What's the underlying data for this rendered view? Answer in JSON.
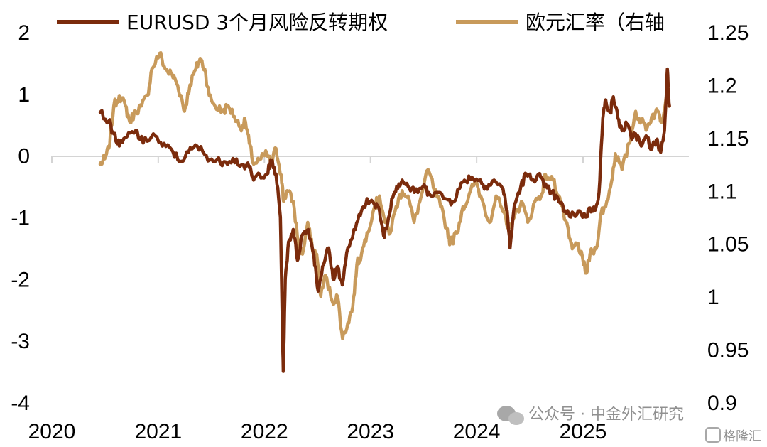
{
  "chart_data": {
    "type": "line",
    "title": "",
    "legend": {
      "placement": "top",
      "items": [
        "EURUSD 3个月风险反转期权",
        "欧元汇率（右轴"
      ]
    },
    "x_ticks": [
      "2020",
      "2021",
      "2022",
      "2023",
      "2024",
      "2025"
    ],
    "xlim": [
      "2020-01-01",
      "2025-12-31"
    ],
    "y_left": {
      "ylim": [
        -4,
        2
      ],
      "ticks": [
        "2",
        "1",
        "0",
        "-1",
        "-2",
        "-3",
        "-4"
      ]
    },
    "y_right": {
      "ylim": [
        0.9,
        1.25
      ],
      "ticks": [
        "1.25",
        "1.2",
        "1.15",
        "1.1",
        "1.05",
        "1",
        "0.95",
        "0.9"
      ]
    },
    "grid": false,
    "series": [
      {
        "name": "EURUSD 3个月风险反转期权",
        "axis": "left",
        "color": "#7b2b0c",
        "points": [
          [
            "2020-06-15",
            0.7
          ],
          [
            "2020-07-15",
            0.55
          ],
          [
            "2020-08-01",
            0.35
          ],
          [
            "2020-08-20",
            0.15
          ],
          [
            "2020-09-15",
            0.3
          ],
          [
            "2020-10-15",
            0.4
          ],
          [
            "2020-11-10",
            0.2
          ],
          [
            "2020-12-15",
            0.35
          ],
          [
            "2021-01-15",
            0.15
          ],
          [
            "2021-02-15",
            0.1
          ],
          [
            "2021-03-15",
            -0.1
          ],
          [
            "2021-04-15",
            0.05
          ],
          [
            "2021-05-15",
            0.15
          ],
          [
            "2021-06-15",
            0.0
          ],
          [
            "2021-07-15",
            -0.1
          ],
          [
            "2021-08-15",
            -0.1
          ],
          [
            "2021-09-15",
            -0.05
          ],
          [
            "2021-10-15",
            -0.15
          ],
          [
            "2021-11-10",
            -0.2
          ],
          [
            "2021-11-25",
            -0.4
          ],
          [
            "2021-12-15",
            -0.3
          ],
          [
            "2022-01-10",
            -0.3
          ],
          [
            "2022-01-25",
            -0.1
          ],
          [
            "2022-02-10",
            -0.3
          ],
          [
            "2022-02-25",
            -1.0
          ],
          [
            "2022-03-03",
            -2.5
          ],
          [
            "2022-03-07",
            -3.5
          ],
          [
            "2022-03-14",
            -2.0
          ],
          [
            "2022-03-25",
            -1.4
          ],
          [
            "2022-04-10",
            -1.2
          ],
          [
            "2022-04-25",
            -1.7
          ],
          [
            "2022-05-10",
            -1.3
          ],
          [
            "2022-06-01",
            -1.2
          ],
          [
            "2022-06-20",
            -1.6
          ],
          [
            "2022-07-05",
            -2.2
          ],
          [
            "2022-07-20",
            -1.8
          ],
          [
            "2022-08-10",
            -1.5
          ],
          [
            "2022-08-25",
            -2.0
          ],
          [
            "2022-09-10",
            -1.8
          ],
          [
            "2022-09-26",
            -2.1
          ],
          [
            "2022-10-15",
            -1.5
          ],
          [
            "2022-11-10",
            -1.2
          ],
          [
            "2022-12-01",
            -0.9
          ],
          [
            "2022-12-20",
            -0.7
          ],
          [
            "2023-01-15",
            -0.8
          ],
          [
            "2023-02-01",
            -0.9
          ],
          [
            "2023-02-15",
            -1.3
          ],
          [
            "2023-03-01",
            -1.1
          ],
          [
            "2023-03-15",
            -0.7
          ],
          [
            "2023-04-01",
            -0.5
          ],
          [
            "2023-04-20",
            -0.4
          ],
          [
            "2023-05-10",
            -0.5
          ],
          [
            "2023-06-01",
            -0.6
          ],
          [
            "2023-07-01",
            -0.5
          ],
          [
            "2023-07-20",
            -0.6
          ],
          [
            "2023-08-15",
            -0.6
          ],
          [
            "2023-09-15",
            -0.7
          ],
          [
            "2023-10-10",
            -0.75
          ],
          [
            "2023-11-01",
            -0.55
          ],
          [
            "2023-11-20",
            -0.4
          ],
          [
            "2023-12-15",
            -0.35
          ],
          [
            "2024-01-10",
            -0.4
          ],
          [
            "2024-02-01",
            -0.5
          ],
          [
            "2024-03-01",
            -0.4
          ],
          [
            "2024-04-01",
            -0.55
          ],
          [
            "2024-04-15",
            -0.9
          ],
          [
            "2024-04-25",
            -1.5
          ],
          [
            "2024-05-10",
            -0.8
          ],
          [
            "2024-06-01",
            -0.5
          ],
          [
            "2024-06-20",
            -0.3
          ],
          [
            "2024-07-10",
            -0.4
          ],
          [
            "2024-08-01",
            -0.3
          ],
          [
            "2024-08-20",
            -0.5
          ],
          [
            "2024-09-15",
            -0.6
          ],
          [
            "2024-10-10",
            -0.75
          ],
          [
            "2024-11-01",
            -0.9
          ],
          [
            "2024-11-20",
            -1.0
          ],
          [
            "2024-12-15",
            -0.9
          ],
          [
            "2025-01-10",
            -1.0
          ],
          [
            "2025-01-25",
            -0.85
          ],
          [
            "2025-02-10",
            -0.9
          ],
          [
            "2025-02-25",
            -0.6
          ],
          [
            "2025-03-10",
            0.6
          ],
          [
            "2025-03-20",
            0.9
          ],
          [
            "2025-04-05",
            0.7
          ],
          [
            "2025-04-15",
            0.95
          ],
          [
            "2025-05-01",
            0.6
          ],
          [
            "2025-05-15",
            0.4
          ],
          [
            "2025-06-01",
            0.5
          ],
          [
            "2025-06-15",
            0.3
          ],
          [
            "2025-07-01",
            0.35
          ],
          [
            "2025-07-20",
            0.15
          ],
          [
            "2025-08-10",
            0.3
          ],
          [
            "2025-08-25",
            0.1
          ],
          [
            "2025-09-10",
            0.25
          ],
          [
            "2025-09-25",
            0.05
          ],
          [
            "2025-10-08",
            0.4
          ],
          [
            "2025-10-18",
            1.4
          ],
          [
            "2025-10-25",
            0.8
          ]
        ]
      },
      {
        "name": "欧元汇率（右轴",
        "axis": "right",
        "color": "#c89a5b",
        "points": [
          [
            "2020-06-15",
            1.125
          ],
          [
            "2020-07-01",
            1.13
          ],
          [
            "2020-07-15",
            1.14
          ],
          [
            "2020-08-01",
            1.18
          ],
          [
            "2020-08-20",
            1.19
          ],
          [
            "2020-09-10",
            1.18
          ],
          [
            "2020-09-25",
            1.165
          ],
          [
            "2020-10-15",
            1.175
          ],
          [
            "2020-11-05",
            1.18
          ],
          [
            "2020-11-25",
            1.19
          ],
          [
            "2020-12-10",
            1.215
          ],
          [
            "2021-01-06",
            1.23
          ],
          [
            "2021-01-25",
            1.215
          ],
          [
            "2021-02-15",
            1.21
          ],
          [
            "2021-03-01",
            1.205
          ],
          [
            "2021-03-20",
            1.19
          ],
          [
            "2021-04-01",
            1.175
          ],
          [
            "2021-04-20",
            1.2
          ],
          [
            "2021-05-10",
            1.215
          ],
          [
            "2021-05-25",
            1.225
          ],
          [
            "2021-06-10",
            1.215
          ],
          [
            "2021-06-25",
            1.19
          ],
          [
            "2021-07-15",
            1.18
          ],
          [
            "2021-08-10",
            1.175
          ],
          [
            "2021-08-30",
            1.18
          ],
          [
            "2021-09-20",
            1.17
          ],
          [
            "2021-10-10",
            1.16
          ],
          [
            "2021-10-28",
            1.165
          ],
          [
            "2021-11-10",
            1.145
          ],
          [
            "2021-11-25",
            1.125
          ],
          [
            "2021-12-20",
            1.13
          ],
          [
            "2022-01-10",
            1.135
          ],
          [
            "2022-01-25",
            1.125
          ],
          [
            "2022-02-10",
            1.14
          ],
          [
            "2022-02-28",
            1.115
          ],
          [
            "2022-03-08",
            1.09
          ],
          [
            "2022-03-20",
            1.1
          ],
          [
            "2022-04-10",
            1.09
          ],
          [
            "2022-04-28",
            1.05
          ],
          [
            "2022-05-12",
            1.04
          ],
          [
            "2022-05-30",
            1.07
          ],
          [
            "2022-06-15",
            1.045
          ],
          [
            "2022-06-30",
            1.04
          ],
          [
            "2022-07-14",
            1.0
          ],
          [
            "2022-07-30",
            1.02
          ],
          [
            "2022-08-23",
            0.995
          ],
          [
            "2022-09-10",
            1.0
          ],
          [
            "2022-09-27",
            0.96
          ],
          [
            "2022-10-15",
            0.975
          ],
          [
            "2022-11-01",
            0.99
          ],
          [
            "2022-11-15",
            1.03
          ],
          [
            "2022-12-01",
            1.04
          ],
          [
            "2022-12-20",
            1.06
          ],
          [
            "2023-01-15",
            1.085
          ],
          [
            "2023-02-01",
            1.095
          ],
          [
            "2023-02-20",
            1.07
          ],
          [
            "2023-03-10",
            1.06
          ],
          [
            "2023-03-30",
            1.085
          ],
          [
            "2023-04-20",
            1.1
          ],
          [
            "2023-05-10",
            1.095
          ],
          [
            "2023-05-31",
            1.07
          ],
          [
            "2023-06-20",
            1.09
          ],
          [
            "2023-07-18",
            1.12
          ],
          [
            "2023-08-10",
            1.1
          ],
          [
            "2023-08-30",
            1.085
          ],
          [
            "2023-09-20",
            1.065
          ],
          [
            "2023-10-03",
            1.05
          ],
          [
            "2023-10-25",
            1.06
          ],
          [
            "2023-11-15",
            1.085
          ],
          [
            "2023-12-01",
            1.09
          ],
          [
            "2023-12-27",
            1.11
          ],
          [
            "2024-01-15",
            1.095
          ],
          [
            "2024-02-14",
            1.07
          ],
          [
            "2024-03-08",
            1.095
          ],
          [
            "2024-04-01",
            1.08
          ],
          [
            "2024-04-16",
            1.065
          ],
          [
            "2024-05-10",
            1.075
          ],
          [
            "2024-06-03",
            1.09
          ],
          [
            "2024-06-25",
            1.07
          ],
          [
            "2024-07-20",
            1.09
          ],
          [
            "2024-08-10",
            1.095
          ],
          [
            "2024-08-25",
            1.115
          ],
          [
            "2024-09-20",
            1.11
          ],
          [
            "2024-10-10",
            1.095
          ],
          [
            "2024-10-25",
            1.08
          ],
          [
            "2024-11-15",
            1.055
          ],
          [
            "2024-11-25",
            1.045
          ],
          [
            "2024-12-15",
            1.05
          ],
          [
            "2025-01-03",
            1.03
          ],
          [
            "2025-01-13",
            1.022
          ],
          [
            "2025-01-25",
            1.04
          ],
          [
            "2025-02-15",
            1.045
          ],
          [
            "2025-03-05",
            1.08
          ],
          [
            "2025-03-20",
            1.085
          ],
          [
            "2025-04-10",
            1.11
          ],
          [
            "2025-04-22",
            1.135
          ],
          [
            "2025-05-15",
            1.12
          ],
          [
            "2025-06-10",
            1.145
          ],
          [
            "2025-07-01",
            1.175
          ],
          [
            "2025-07-20",
            1.165
          ],
          [
            "2025-08-10",
            1.16
          ],
          [
            "2025-08-25",
            1.17
          ],
          [
            "2025-09-15",
            1.175
          ],
          [
            "2025-09-30",
            1.165
          ],
          [
            "2025-10-18",
            1.2
          ],
          [
            "2025-10-25",
            1.18
          ]
        ]
      }
    ]
  },
  "watermark": {
    "wechat_label": "公众号 · 中金外汇研究",
    "corner_logo": "格隆汇"
  }
}
